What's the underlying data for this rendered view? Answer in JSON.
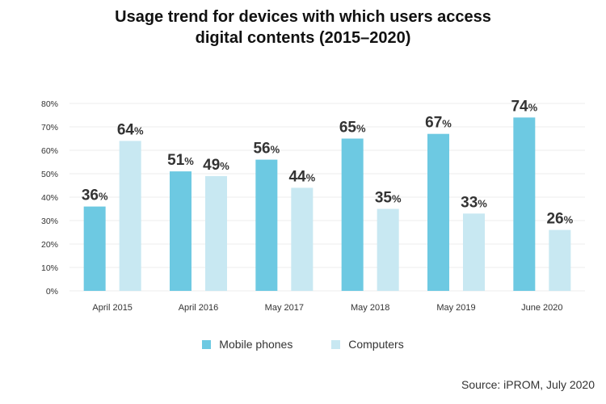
{
  "chart_data": {
    "type": "bar",
    "title": [
      "Usage trend for devices with which users access",
      "digital contents (2015–2020)"
    ],
    "categories": [
      "April 2015",
      "April 2016",
      "May 2017",
      "May 2018",
      "May 2019",
      "June 2020"
    ],
    "series": [
      {
        "name": "Mobile phones",
        "color": "#6dc9e2",
        "values": [
          36,
          51,
          56,
          65,
          67,
          74
        ]
      },
      {
        "name": "Computers",
        "color": "#c8e8f2",
        "values": [
          64,
          49,
          44,
          35,
          33,
          26
        ]
      }
    ],
    "y_ticks": [
      "0%",
      "10%",
      "20%",
      "30%",
      "40%",
      "50%",
      "60%",
      "70%",
      "80%"
    ],
    "ylim": [
      0,
      80
    ],
    "unit": "%",
    "grid": true,
    "legend_position": "bottom"
  },
  "source": "Source: iPROM, July 2020"
}
